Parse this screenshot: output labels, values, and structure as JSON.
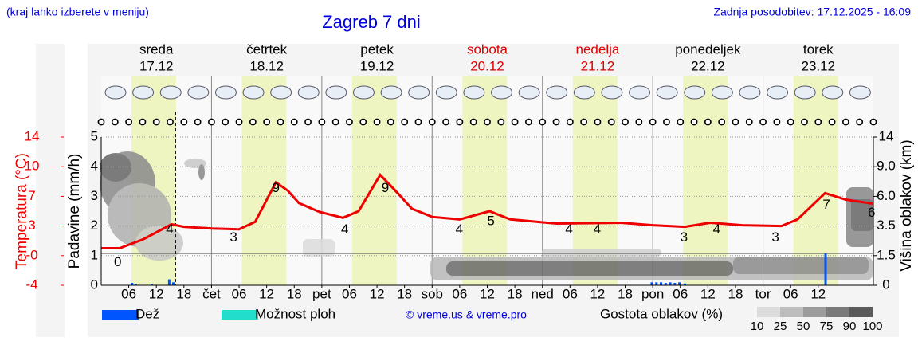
{
  "header": {
    "hint": "(kraj lahko izberete v meniju)",
    "updated": "Zadnja posodobitev: 17.12.2025 - 16:09"
  },
  "chart_data": {
    "type": "line",
    "title": "Zagreb 7 dni",
    "days": [
      {
        "name": "sreda",
        "date": "17.12",
        "color": "#000000"
      },
      {
        "name": "četrtek",
        "date": "18.12",
        "color": "#000000"
      },
      {
        "name": "petek",
        "date": "19.12",
        "color": "#000000"
      },
      {
        "name": "sobota",
        "date": "20.12",
        "color": "#dd0000"
      },
      {
        "name": "nedelja",
        "date": "21.12",
        "color": "#dd0000"
      },
      {
        "name": "ponedeljek",
        "date": "22.12",
        "color": "#000000"
      },
      {
        "name": "torek",
        "date": "23.12",
        "color": "#000000"
      }
    ],
    "xlim": [
      0,
      168
    ],
    "xticks": [
      {
        "value": 6,
        "label": "06"
      },
      12,
      18,
      {
        "value": 24,
        "label": "čet"
      },
      {
        "value": 30,
        "label": "06"
      },
      {
        "value": 36,
        "label": "12"
      },
      {
        "value": 42,
        "label": "18"
      },
      {
        "value": 48,
        "label": "pet"
      },
      {
        "value": 54,
        "label": "06"
      },
      {
        "value": 60,
        "label": "12"
      },
      {
        "value": 66,
        "label": "18"
      },
      {
        "value": 72,
        "label": "sob"
      },
      {
        "value": 78,
        "label": "06"
      },
      {
        "value": 84,
        "label": "12"
      },
      {
        "value": 90,
        "label": "18"
      },
      {
        "value": 96,
        "label": "ned"
      },
      {
        "value": 102,
        "label": "06"
      },
      {
        "value": 108,
        "label": "12"
      },
      {
        "value": 114,
        "label": "18"
      },
      {
        "value": 120,
        "label": "pon"
      },
      {
        "value": 126,
        "label": "06"
      },
      {
        "value": 132,
        "label": "12"
      },
      {
        "value": 138,
        "label": "18"
      },
      {
        "value": 144,
        "label": "tor"
      },
      {
        "value": 150,
        "label": "06"
      },
      {
        "value": 156,
        "label": "12"
      }
    ],
    "daylight": [
      6.6,
      16.3
    ],
    "daylight_color": "#eef5c0",
    "current_time": 16.15,
    "ylabel": "Padavine (mm/h)",
    "ylim": [
      0,
      5
    ],
    "yticks": [
      0,
      1,
      2,
      3,
      4,
      5
    ],
    "temp_label": "Temperatura (°C)",
    "temp_lim": [
      -4,
      14
    ],
    "temp_ticks": [
      -4,
      {
        "value": -0.4,
        "label": "-0"
      },
      {
        "value": 3.2,
        "label": "3"
      },
      {
        "value": 6.8,
        "label": "7"
      },
      {
        "value": 10.4,
        "label": "10"
      },
      14
    ],
    "temp_color": "#ee0000",
    "y2label": "Višina oblakov (km)",
    "y2lim": [
      0,
      14
    ],
    "y2ticks": [
      0,
      1.5,
      3.5,
      {
        "value": 6,
        "label": "6.0"
      },
      {
        "value": 9,
        "label": "9.0"
      },
      14
    ],
    "temperature": {
      "x": [
        0,
        4,
        9.2,
        15.3,
        18,
        24,
        30,
        33.5,
        38,
        40.6,
        43,
        47.5,
        52.6,
        56,
        60.7,
        64,
        67.6,
        72,
        78,
        84.5,
        89,
        99,
        113,
        120,
        127,
        132.5,
        139.5,
        148,
        151.5,
        157.5,
        162,
        168
      ],
      "values": [
        0.5,
        0.5,
        1.6,
        3.4,
        3.1,
        2.9,
        2.8,
        3.7,
        8.5,
        7.5,
        6.0,
        4.9,
        4.2,
        5.0,
        9.4,
        7.5,
        5.3,
        4.3,
        4.0,
        5.0,
        4.0,
        3.5,
        3.6,
        3.3,
        3.1,
        3.6,
        3.3,
        3.2,
        4.0,
        7.2,
        6.4,
        5.9
      ]
    },
    "temp_labels": {
      "x": [
        3.6,
        14.9,
        28.8,
        38,
        53,
        61.8,
        77.9,
        84.8,
        101.8,
        107.9,
        126.8,
        133.9,
        146.7,
        157.8,
        167.6
      ],
      "values": [
        0,
        4,
        3,
        9,
        4,
        9,
        4,
        5,
        4,
        4,
        3,
        4,
        3,
        7,
        6
      ]
    },
    "rain": {
      "x": [
        6.7,
        7.5,
        11,
        14.8,
        15.7,
        119.8,
        120.8,
        121.8,
        122.8,
        123.8,
        124.8,
        125.8,
        127,
        157.6
      ],
      "values": [
        0.08,
        0.05,
        0.05,
        0.2,
        0.1,
        0.1,
        0.1,
        0.1,
        0.08,
        0.1,
        0.08,
        0.1,
        0.06,
        1.07
      ]
    },
    "legend": [
      {
        "name": "Dež",
        "color": "#0055ff"
      },
      {
        "name": "Možnost ploh",
        "color": "#22ddcc"
      }
    ],
    "cloud_legend": {
      "title": "Gostota oblakov (%)",
      "levels": [
        10,
        25,
        50,
        75,
        90,
        100
      ],
      "colors": [
        "#dcdcdc",
        "#bdbdbd",
        "#9c9c9c",
        "#7b7b7b",
        "#5a5a5a"
      ]
    },
    "credit": "© vreme.us & vreme.pro"
  }
}
